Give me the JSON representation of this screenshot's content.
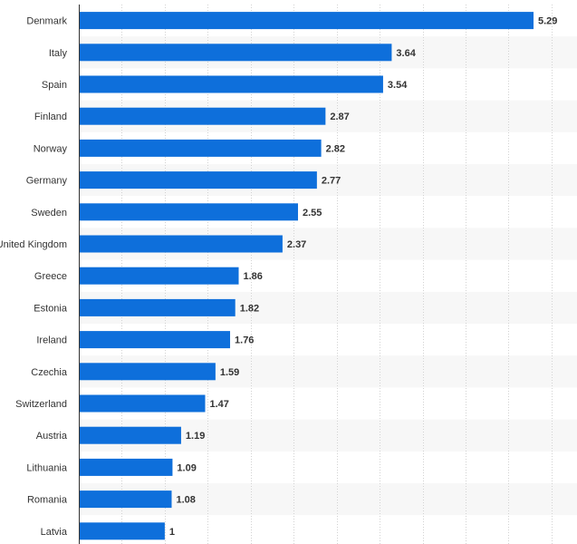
{
  "chart_data": {
    "type": "bar",
    "orientation": "horizontal",
    "categories": [
      "Denmark",
      "Italy",
      "Spain",
      "Finland",
      "Norway",
      "Germany",
      "Sweden",
      "United Kingdom",
      "Greece",
      "Estonia",
      "Ireland",
      "Czechia",
      "Switzerland",
      "Austria",
      "Lithuania",
      "Romania",
      "Latvia"
    ],
    "values": [
      5.29,
      3.64,
      3.54,
      2.87,
      2.82,
      2.77,
      2.55,
      2.37,
      1.86,
      1.82,
      1.76,
      1.59,
      1.47,
      1.19,
      1.09,
      1.08,
      1
    ],
    "value_labels": [
      "5.29",
      "3.64",
      "3.54",
      "2.87",
      "2.82",
      "2.77",
      "2.55",
      "2.37",
      "1.86",
      "1.82",
      "1.76",
      "1.59",
      "1.47",
      "1.19",
      "1.09",
      "1.08",
      "1"
    ],
    "title": "",
    "xlabel": "",
    "ylabel": "",
    "xlim": [
      0,
      5.5
    ],
    "grid": true,
    "legend": "none",
    "colors": {
      "bar": "#0e6fdb",
      "band": "#f7f7f7",
      "grid": "#d2d2d2",
      "axis": "#333333",
      "text": "#333333"
    }
  }
}
